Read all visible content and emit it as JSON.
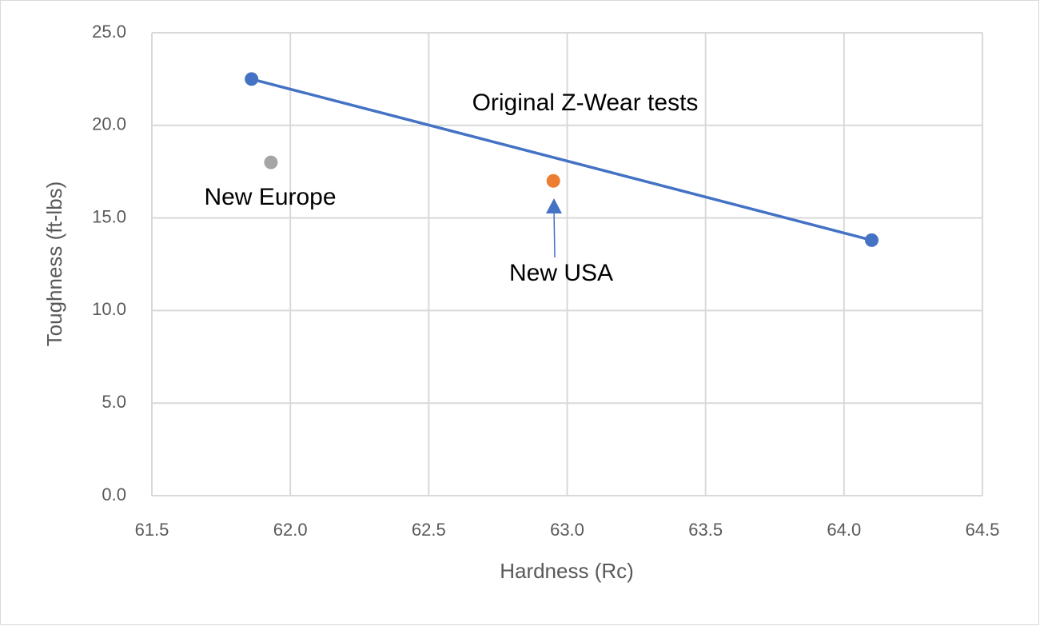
{
  "chart_data": {
    "type": "scatter",
    "x_label": "Hardness (Rc)",
    "y_label": "Toughness (ft-lbs)",
    "xlim": [
      61.5,
      64.5
    ],
    "xticks": [
      61.5,
      {
        "value": 62,
        "label": "62.0"
      },
      62.5,
      {
        "value": 63,
        "label": "63.0"
      },
      63.5,
      {
        "value": 64,
        "label": "64.0"
      },
      64.5
    ],
    "ylim": [
      0,
      25
    ],
    "yticks": [
      {
        "value": 0,
        "label": "0.0"
      },
      {
        "value": 5,
        "label": "5.0"
      },
      {
        "value": 10,
        "label": "10.0"
      },
      {
        "value": 15,
        "label": "15.0"
      },
      {
        "value": 20,
        "label": "20.0"
      },
      {
        "value": 25,
        "label": "25.0"
      }
    ],
    "grid": true,
    "series": [
      {
        "name": "Original Z-Wear tests",
        "color": "#4472c4",
        "line": true,
        "x": [
          61.86,
          64.1
        ],
        "values": [
          22.5,
          13.8
        ]
      },
      {
        "name": "New Europe",
        "color": "#a5a5a5",
        "line": false,
        "x": [
          61.93
        ],
        "values": [
          18.0
        ]
      },
      {
        "name": "New USA",
        "color": "#ed7d31",
        "line": false,
        "x": [
          62.95
        ],
        "values": [
          17.0
        ]
      }
    ]
  }
}
